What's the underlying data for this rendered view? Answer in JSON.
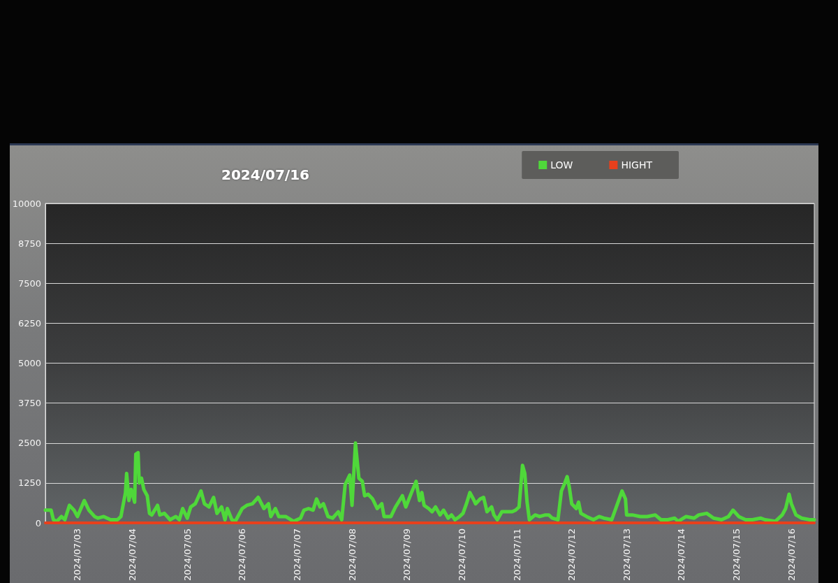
{
  "chart_data": {
    "type": "line",
    "title": "2024/07/16",
    "xlim": [
      "2024-07-02T10:00",
      "2024-07-16T10:00"
    ],
    "xticks": [
      {
        "value": "2024-07-03",
        "label": "2024/07/03"
      },
      {
        "value": "2024-07-04",
        "label": "2024/07/04"
      },
      {
        "value": "2024-07-05",
        "label": "2024/07/05"
      },
      {
        "value": "2024-07-06",
        "label": "2024/07/06"
      },
      {
        "value": "2024-07-07",
        "label": "2024/07/07"
      },
      {
        "value": "2024-07-08",
        "label": "2024/07/08"
      },
      {
        "value": "2024-07-09",
        "label": "2024/07/09"
      },
      {
        "value": "2024-07-10",
        "label": "2024/07/10"
      },
      {
        "value": "2024-07-11",
        "label": "2024/07/11"
      },
      {
        "value": "2024-07-12",
        "label": "2024/07/12"
      },
      {
        "value": "2024-07-13",
        "label": "2024/07/13"
      },
      {
        "value": "2024-07-14",
        "label": "2024/07/14"
      },
      {
        "value": "2024-07-15",
        "label": "2024/07/15"
      },
      {
        "value": "2024-07-16",
        "label": "2024/07/16"
      }
    ],
    "ylim": [
      0,
      10000
    ],
    "yticks": [
      0,
      1250,
      2500,
      3750,
      5000,
      6250,
      7500,
      8750,
      10000
    ],
    "grid": "y",
    "legend": "top right",
    "marker": "none",
    "series": [
      {
        "name": "LOW",
        "color": "#4fd83a",
        "x": [
          "2024-07-02T10:00",
          "2024-07-02T12:30",
          "2024-07-02T13:30",
          "2024-07-02T15:00",
          "2024-07-02T17:00",
          "2024-07-02T18:30",
          "2024-07-02T20:30",
          "2024-07-02T22:30",
          "2024-07-03T00:00",
          "2024-07-03T03:00",
          "2024-07-03T05:00",
          "2024-07-03T07:30",
          "2024-07-03T09:00",
          "2024-07-03T11:30",
          "2024-07-03T14:30",
          "2024-07-03T17:30",
          "2024-07-03T19:00",
          "2024-07-03T21:00",
          "2024-07-03T21:30",
          "2024-07-03T22:30",
          "2024-07-03T23:30",
          "2024-07-04T01:00",
          "2024-07-04T01:30",
          "2024-07-04T02:30",
          "2024-07-04T03:00",
          "2024-07-04T04:00",
          "2024-07-04T05:00",
          "2024-07-04T06:30",
          "2024-07-04T07:30",
          "2024-07-04T08:30",
          "2024-07-04T11:00",
          "2024-07-04T12:00",
          "2024-07-04T14:00",
          "2024-07-04T16:30",
          "2024-07-04T19:00",
          "2024-07-04T20:30",
          "2024-07-04T22:00",
          "2024-07-05T00:00",
          "2024-07-05T01:30",
          "2024-07-05T03:30",
          "2024-07-05T06:00",
          "2024-07-05T07:30",
          "2024-07-05T09:30",
          "2024-07-05T11:30",
          "2024-07-05T13:00",
          "2024-07-05T15:00",
          "2024-07-05T16:30",
          "2024-07-05T17:30",
          "2024-07-05T19:30",
          "2024-07-05T21:00",
          "2024-07-06T00:00",
          "2024-07-06T02:00",
          "2024-07-06T04:30",
          "2024-07-06T07:00",
          "2024-07-06T09:30",
          "2024-07-06T11:30",
          "2024-07-06T12:30",
          "2024-07-06T14:30",
          "2024-07-06T16:00",
          "2024-07-06T19:00",
          "2024-07-06T22:30",
          "2024-07-07T01:30",
          "2024-07-07T03:00",
          "2024-07-07T05:00",
          "2024-07-07T07:00",
          "2024-07-07T08:30",
          "2024-07-07T10:00",
          "2024-07-07T11:30",
          "2024-07-07T13:30",
          "2024-07-07T15:30",
          "2024-07-07T18:00",
          "2024-07-07T19:30",
          "2024-07-07T21:00",
          "2024-07-07T23:00",
          "2024-07-08T00:00",
          "2024-07-08T01:30",
          "2024-07-08T03:00",
          "2024-07-08T04:30",
          "2024-07-08T05:30",
          "2024-07-08T07:00",
          "2024-07-08T09:00",
          "2024-07-08T11:00",
          "2024-07-08T13:00",
          "2024-07-08T14:00",
          "2024-07-08T17:00",
          "2024-07-08T19:00",
          "2024-07-08T22:00",
          "2024-07-08T23:30",
          "2024-07-09T02:00",
          "2024-07-09T04:00",
          "2024-07-09T05:30",
          "2024-07-09T06:30",
          "2024-07-09T07:30",
          "2024-07-09T09:30",
          "2024-07-09T11:00",
          "2024-07-09T12:30",
          "2024-07-09T14:30",
          "2024-07-09T16:00",
          "2024-07-09T18:00",
          "2024-07-09T19:30",
          "2024-07-09T21:00",
          "2024-07-09T23:00",
          "2024-07-10T00:30",
          "2024-07-10T02:00",
          "2024-07-10T03:30",
          "2024-07-10T05:00",
          "2024-07-10T06:00",
          "2024-07-10T08:00",
          "2024-07-10T09:30",
          "2024-07-10T11:00",
          "2024-07-10T13:00",
          "2024-07-10T14:00",
          "2024-07-10T15:30",
          "2024-07-10T17:30",
          "2024-07-10T19:30",
          "2024-07-10T22:00",
          "2024-07-10T23:30",
          "2024-07-11T01:00",
          "2024-07-11T02:30",
          "2024-07-11T03:30",
          "2024-07-11T04:30",
          "2024-07-11T05:30",
          "2024-07-11T08:00",
          "2024-07-11T10:00",
          "2024-07-11T12:30",
          "2024-07-11T14:00",
          "2024-07-11T15:30",
          "2024-07-11T18:00",
          "2024-07-11T19:30",
          "2024-07-11T21:00",
          "2024-07-11T22:00",
          "2024-07-11T23:00",
          "2024-07-12T00:00",
          "2024-07-12T02:00",
          "2024-07-12T03:00",
          "2024-07-12T04:00",
          "2024-07-12T06:30",
          "2024-07-12T09:30",
          "2024-07-12T12:00",
          "2024-07-12T14:00",
          "2024-07-12T17:30",
          "2024-07-12T20:30",
          "2024-07-12T22:00",
          "2024-07-12T23:30",
          "2024-07-13T00:00",
          "2024-07-13T02:30",
          "2024-07-13T06:00",
          "2024-07-13T09:00",
          "2024-07-13T12:30",
          "2024-07-13T15:00",
          "2024-07-13T18:00",
          "2024-07-13T21:00",
          "2024-07-13T22:30",
          "2024-07-14T02:00",
          "2024-07-14T05:30",
          "2024-07-14T07:30",
          "2024-07-14T11:00",
          "2024-07-14T14:00",
          "2024-07-14T17:30",
          "2024-07-14T20:30",
          "2024-07-14T22:30",
          "2024-07-15T01:00",
          "2024-07-15T04:00",
          "2024-07-15T07:00",
          "2024-07-15T10:30",
          "2024-07-15T12:30",
          "2024-07-15T17:00",
          "2024-07-15T20:00",
          "2024-07-15T21:30",
          "2024-07-15T23:00",
          "2024-07-16T00:00",
          "2024-07-16T02:00",
          "2024-07-16T04:30",
          "2024-07-16T08:00",
          "2024-07-16T10:00"
        ],
        "values": [
          400,
          400,
          100,
          50,
          200,
          100,
          550,
          400,
          200,
          700,
          400,
          200,
          150,
          200,
          100,
          100,
          200,
          950,
          1550,
          700,
          1050,
          650,
          2150,
          2200,
          1250,
          1400,
          1050,
          850,
          300,
          250,
          550,
          250,
          300,
          100,
          200,
          100,
          450,
          150,
          500,
          600,
          1000,
          600,
          500,
          800,
          300,
          500,
          100,
          450,
          100,
          50,
          450,
          550,
          600,
          800,
          450,
          600,
          200,
          450,
          200,
          200,
          50,
          150,
          400,
          450,
          400,
          750,
          500,
          600,
          200,
          150,
          350,
          100,
          1200,
          1500,
          550,
          2500,
          1400,
          1300,
          850,
          900,
          750,
          450,
          600,
          200,
          200,
          500,
          850,
          500,
          950,
          1300,
          700,
          950,
          550,
          450,
          350,
          500,
          250,
          400,
          150,
          250,
          100,
          200,
          300,
          600,
          950,
          750,
          600,
          750,
          800,
          350,
          500,
          250,
          100,
          350,
          350,
          350,
          400,
          500,
          1800,
          1550,
          650,
          100,
          250,
          200,
          250,
          250,
          150,
          100,
          1000,
          1250,
          1450,
          1100,
          600,
          450,
          650,
          300,
          200,
          100,
          200,
          150,
          100,
          700,
          1000,
          750,
          250,
          250,
          200,
          200,
          250,
          100,
          100,
          150,
          50,
          200,
          150,
          250,
          300,
          150,
          100,
          200,
          400,
          200,
          100,
          100,
          150,
          100,
          50,
          250,
          450,
          900,
          600,
          250,
          150,
          100,
          100
        ]
      },
      {
        "name": "HIGHT",
        "color": "#e8401c",
        "x": [
          "2024-07-02T10:00",
          "2024-07-16T10:00"
        ],
        "values": [
          0,
          0
        ]
      }
    ]
  }
}
